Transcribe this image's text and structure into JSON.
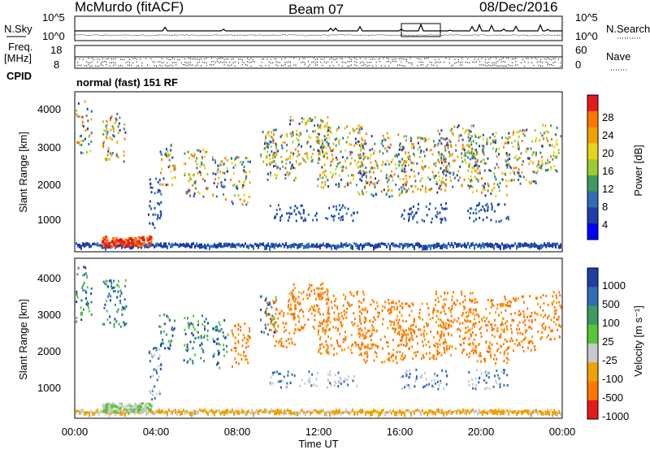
{
  "header": {
    "station": "McMurdo (fitACF)",
    "beam": "Beam 07",
    "date": "08/Dec/2016"
  },
  "top_panels": {
    "nsky_label": "N.Sky",
    "nsky_ticks": [
      "10^5",
      "10^0"
    ],
    "nsearch_label": "N.Search",
    "nsearch_ticks": [
      "10^5",
      "10^0"
    ],
    "freq_label_line1": "Freq.",
    "freq_label_line2": "[MHz]",
    "freq_ticks": [
      "18",
      "8"
    ],
    "nave_label": "Nave",
    "nave_ticks": [
      "60",
      "0"
    ],
    "cpid_label": "CPID",
    "cpid_text": "normal (fast) 151 RF"
  },
  "power_panel": {
    "ylabel": "Slant Range [km]",
    "yticks": [
      "4000",
      "3000",
      "2000",
      "1000"
    ],
    "colorbar_label": "Power [dB]",
    "colorbar_ticks": [
      "28",
      "24",
      "20",
      "16",
      "12",
      "8",
      "4"
    ],
    "colorbar_colors": [
      "#e41a1c",
      "#ff7700",
      "#f2a100",
      "#e6d41c",
      "#9acd32",
      "#3e9a5e",
      "#2f6db5",
      "#1f3ea8",
      "#0000ff"
    ]
  },
  "velocity_panel": {
    "ylabel": "Slant Range [km]",
    "yticks": [
      "4000",
      "3000",
      "2000",
      "1000"
    ],
    "colorbar_label": "Velocity [m s⁻¹]",
    "colorbar_ticks": [
      "1000",
      "500",
      "100",
      "25",
      "-25",
      "-100",
      "-500",
      "-1000"
    ],
    "colorbar_colors": [
      "#1f3ea8",
      "#2f6db5",
      "#3e9a5e",
      "#55c73a",
      "#c8c8c8",
      "#f2a100",
      "#ff7700",
      "#e41a1c"
    ]
  },
  "xaxis": {
    "label": "Time UT",
    "ticks": [
      "00:00",
      "04:00",
      "08:00",
      "12:00",
      "16:00",
      "20:00",
      "00:00"
    ]
  },
  "chart_data": {
    "type": "heatmap",
    "title": "McMurdo (fitACF) Beam 07 08/Dec/2016",
    "xlabel": "Time UT",
    "ylabel": "Slant Range [km]",
    "xlim": [
      "00:00",
      "24:00"
    ],
    "ylim": [
      180,
      4600
    ],
    "series": [
      {
        "name": "Power [dB]",
        "range": [
          0,
          30
        ]
      },
      {
        "name": "Velocity [m s⁻¹]",
        "range": [
          -1000,
          1000
        ]
      }
    ]
  }
}
